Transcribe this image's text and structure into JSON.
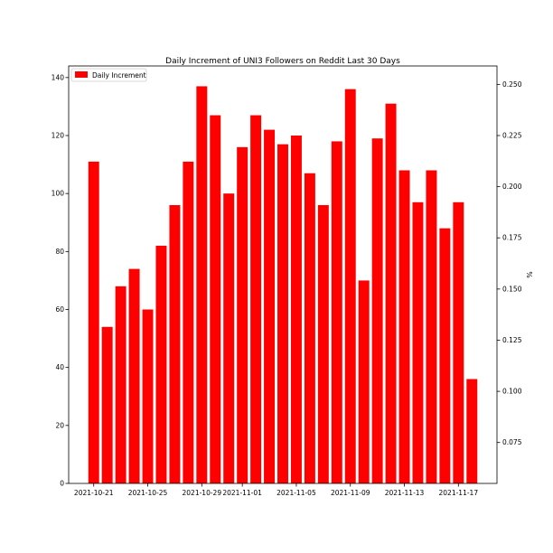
{
  "chart_data": {
    "type": "bar",
    "title": "Daily Increment of UNI3 Followers on Reddit Last 30 Days",
    "xlabel": "",
    "ylabel": "",
    "y2label": "%",
    "series": [
      {
        "name": "Daily Increment",
        "color": "#ff0000",
        "dates": [
          "2021-10-21",
          "2021-10-22",
          "2021-10-23",
          "2021-10-24",
          "2021-10-25",
          "2021-10-26",
          "2021-10-27",
          "2021-10-28",
          "2021-10-29",
          "2021-10-30",
          "2021-10-31",
          "2021-11-01",
          "2021-11-02",
          "2021-11-03",
          "2021-11-04",
          "2021-11-05",
          "2021-11-06",
          "2021-11-07",
          "2021-11-08",
          "2021-11-09",
          "2021-11-10",
          "2021-11-11",
          "2021-11-12",
          "2021-11-13",
          "2021-11-14",
          "2021-11-15",
          "2021-11-16",
          "2021-11-17",
          "2021-11-18"
        ],
        "values": [
          111,
          54,
          68,
          74,
          60,
          82,
          96,
          111,
          137,
          127,
          100,
          116,
          127,
          122,
          117,
          120,
          107,
          96,
          118,
          136,
          70,
          119,
          131,
          108,
          97,
          108,
          88,
          97,
          36
        ]
      }
    ],
    "xticks": [
      "2021-10-21",
      "2021-10-25",
      "2021-10-29",
      "2021-11-01",
      "2021-11-05",
      "2021-11-09",
      "2021-11-13",
      "2021-11-17"
    ],
    "ylim": [
      0,
      144
    ],
    "yticks": [
      0,
      20,
      40,
      60,
      80,
      100,
      120,
      140
    ],
    "y2lim": [
      0.055,
      0.259
    ],
    "y2ticks": [
      "0.075",
      "0.100",
      "0.125",
      "0.150",
      "0.175",
      "0.200",
      "0.225",
      "0.250"
    ],
    "legend": "top-left",
    "grid": false
  }
}
